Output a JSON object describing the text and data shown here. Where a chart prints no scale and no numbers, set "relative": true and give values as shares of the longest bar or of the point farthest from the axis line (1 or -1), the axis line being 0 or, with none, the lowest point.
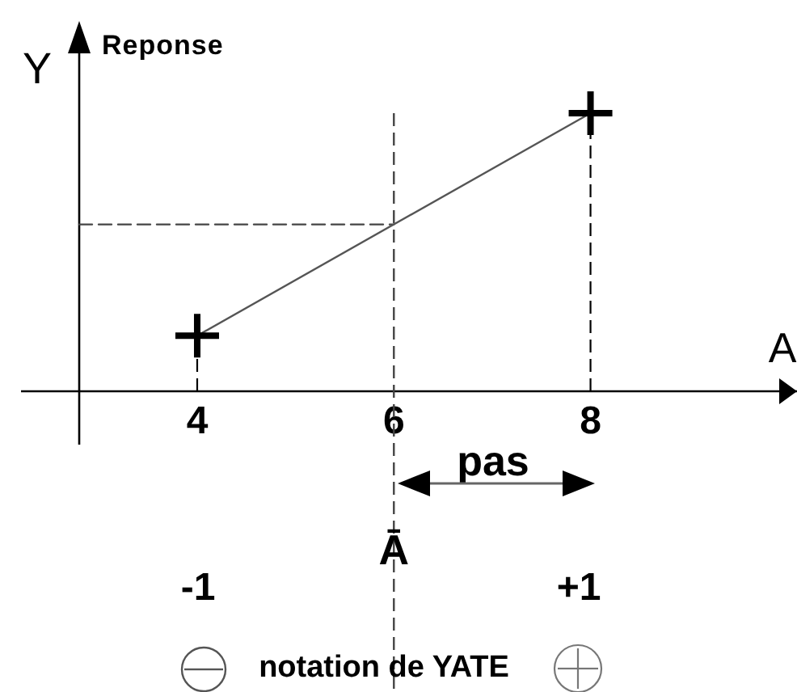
{
  "chart_data": {
    "type": "line",
    "ylabel": "Y",
    "xlabel": "A",
    "annotations": [
      "Reponse",
      "pas",
      "-1",
      "+1",
      "notation de YATE"
    ],
    "relative": true,
    "xlim": [
      2.8,
      10.1
    ],
    "xticks": [
      4,
      6,
      8
    ],
    "series": [
      {
        "type": "line",
        "color": "#555555",
        "x": [
          4,
          8
        ],
        "values": [
          0.2,
          1
        ],
        "marker": "none"
      },
      {
        "type": "lollipop",
        "color": "#000000",
        "x": [
          4,
          8
        ],
        "values": [
          0.2,
          1
        ],
        "marker": "cross",
        "line_style": "dashed"
      },
      {
        "type": "line",
        "color": "#444444",
        "x": [
          2.8,
          6
        ],
        "values": [
          0.6,
          0.6
        ],
        "marker": "none",
        "line_style": "dashed"
      }
    ],
    "ref_lines": [
      {
        "axis": "x",
        "value": 6,
        "label": "Ā",
        "line_style": "dashed",
        "color": "#444444"
      }
    ],
    "grid": false,
    "legend": false,
    "tick_labels": "x"
  }
}
